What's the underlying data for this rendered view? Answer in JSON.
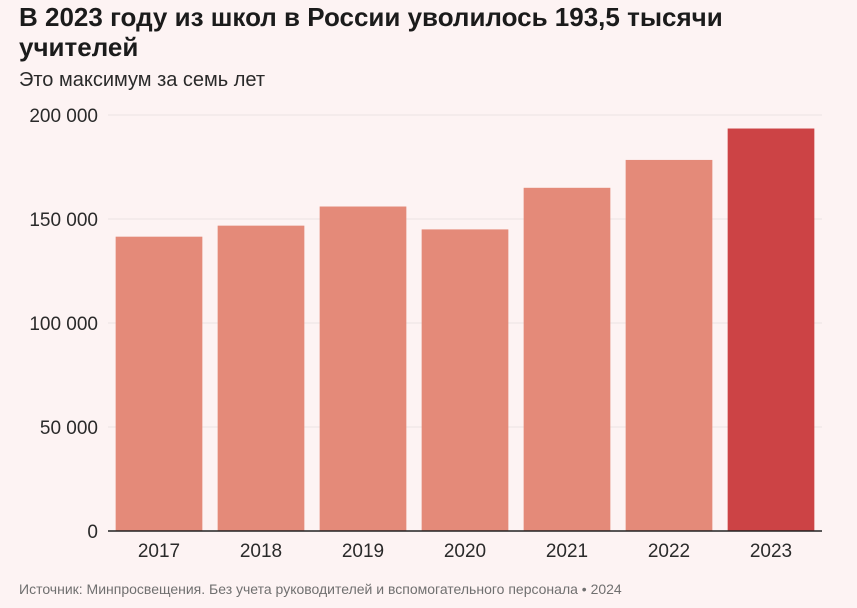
{
  "header": {
    "title": "В 2023 году из школ в России уволилось 193,5 тысячи учителей",
    "subtitle": "Это максимум за семь лет"
  },
  "footer": {
    "source": "Источник: Минпросвещения. Без учета руководителей и вспомогательного персонала • 2024"
  },
  "colors": {
    "bar": "#e48a79",
    "highlight": "#cc4345",
    "grid": "#ece3e3",
    "axis": "#222222",
    "background": "#fdf3f3"
  },
  "chart_data": {
    "type": "bar",
    "title": "В 2023 году из школ в России уволилось 193,5 тысячи учителей",
    "subtitle": "Это максимум за семь лет",
    "categories": [
      "2017",
      "2018",
      "2019",
      "2020",
      "2021",
      "2022",
      "2023"
    ],
    "values": [
      141500,
      146800,
      156000,
      145000,
      165000,
      178400,
      193500
    ],
    "highlight_category": "2023",
    "ylim": [
      0,
      200000
    ],
    "yticks": [
      0,
      50000,
      100000,
      150000,
      200000
    ],
    "ytick_labels": [
      "0",
      "50 000",
      "100 000",
      "150 000",
      "200 000"
    ],
    "xlabel": "",
    "ylabel": "",
    "grid": true,
    "legend": "none"
  }
}
